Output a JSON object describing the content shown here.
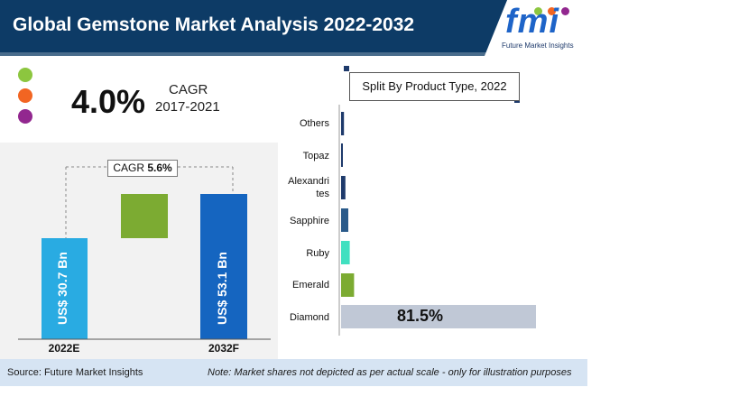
{
  "header": {
    "title": "Global Gemstone Market Analysis 2022-2032",
    "logo_text": "fmi",
    "logo_subtext": "Future Market Insights"
  },
  "cagr_panel": {
    "value": "4.0%",
    "label": "CAGR",
    "period": "2017-2021",
    "dot_colors": [
      "#8cc63f",
      "#f26522",
      "#92278f"
    ]
  },
  "growth_chart": {
    "cagr_box_prefix": "CAGR",
    "cagr_box_value": "5.6%",
    "bars": [
      {
        "category": "2022E",
        "label": "US$ 30.7 Bn",
        "value": 30.7,
        "color": "#29abe2"
      },
      {
        "category": "2032F",
        "label": "US$ 53.1 Bn",
        "value": 53.1,
        "color": "#1565c0"
      }
    ],
    "increment_color": "#7cab32"
  },
  "split_chart": {
    "title": "Split By Product Type, 2022",
    "diamond_label": "81.5%"
  },
  "chart_data": [
    {
      "type": "bar",
      "categories": [
        "2022E",
        "2032F"
      ],
      "values": [
        30.7,
        53.1
      ],
      "title": "",
      "annotations": [
        "CAGR 5.6%",
        "US$ 30.7 Bn",
        "US$ 53.1 Bn"
      ]
    },
    {
      "type": "bar",
      "orientation": "horizontal",
      "title": "Split By Product Type, 2022",
      "categories": [
        "Others",
        "Topaz",
        "Alexandrites",
        "Sapphire",
        "Ruby",
        "Emerald",
        "Diamond"
      ],
      "values": [
        1.0,
        0.5,
        1.5,
        2.5,
        3.0,
        4.5,
        81.5
      ],
      "colors": [
        "#1e3a6b",
        "#1e3a6b",
        "#1e3a6b",
        "#2a5a8a",
        "#40e0c0",
        "#7cab32",
        "#c0c8d6"
      ],
      "annotations": [
        "81.5%"
      ]
    }
  ],
  "footer": {
    "source": "Source: Future Market Insights",
    "note": "Note: Market shares not depicted as per actual scale - only for illustration purposes"
  }
}
